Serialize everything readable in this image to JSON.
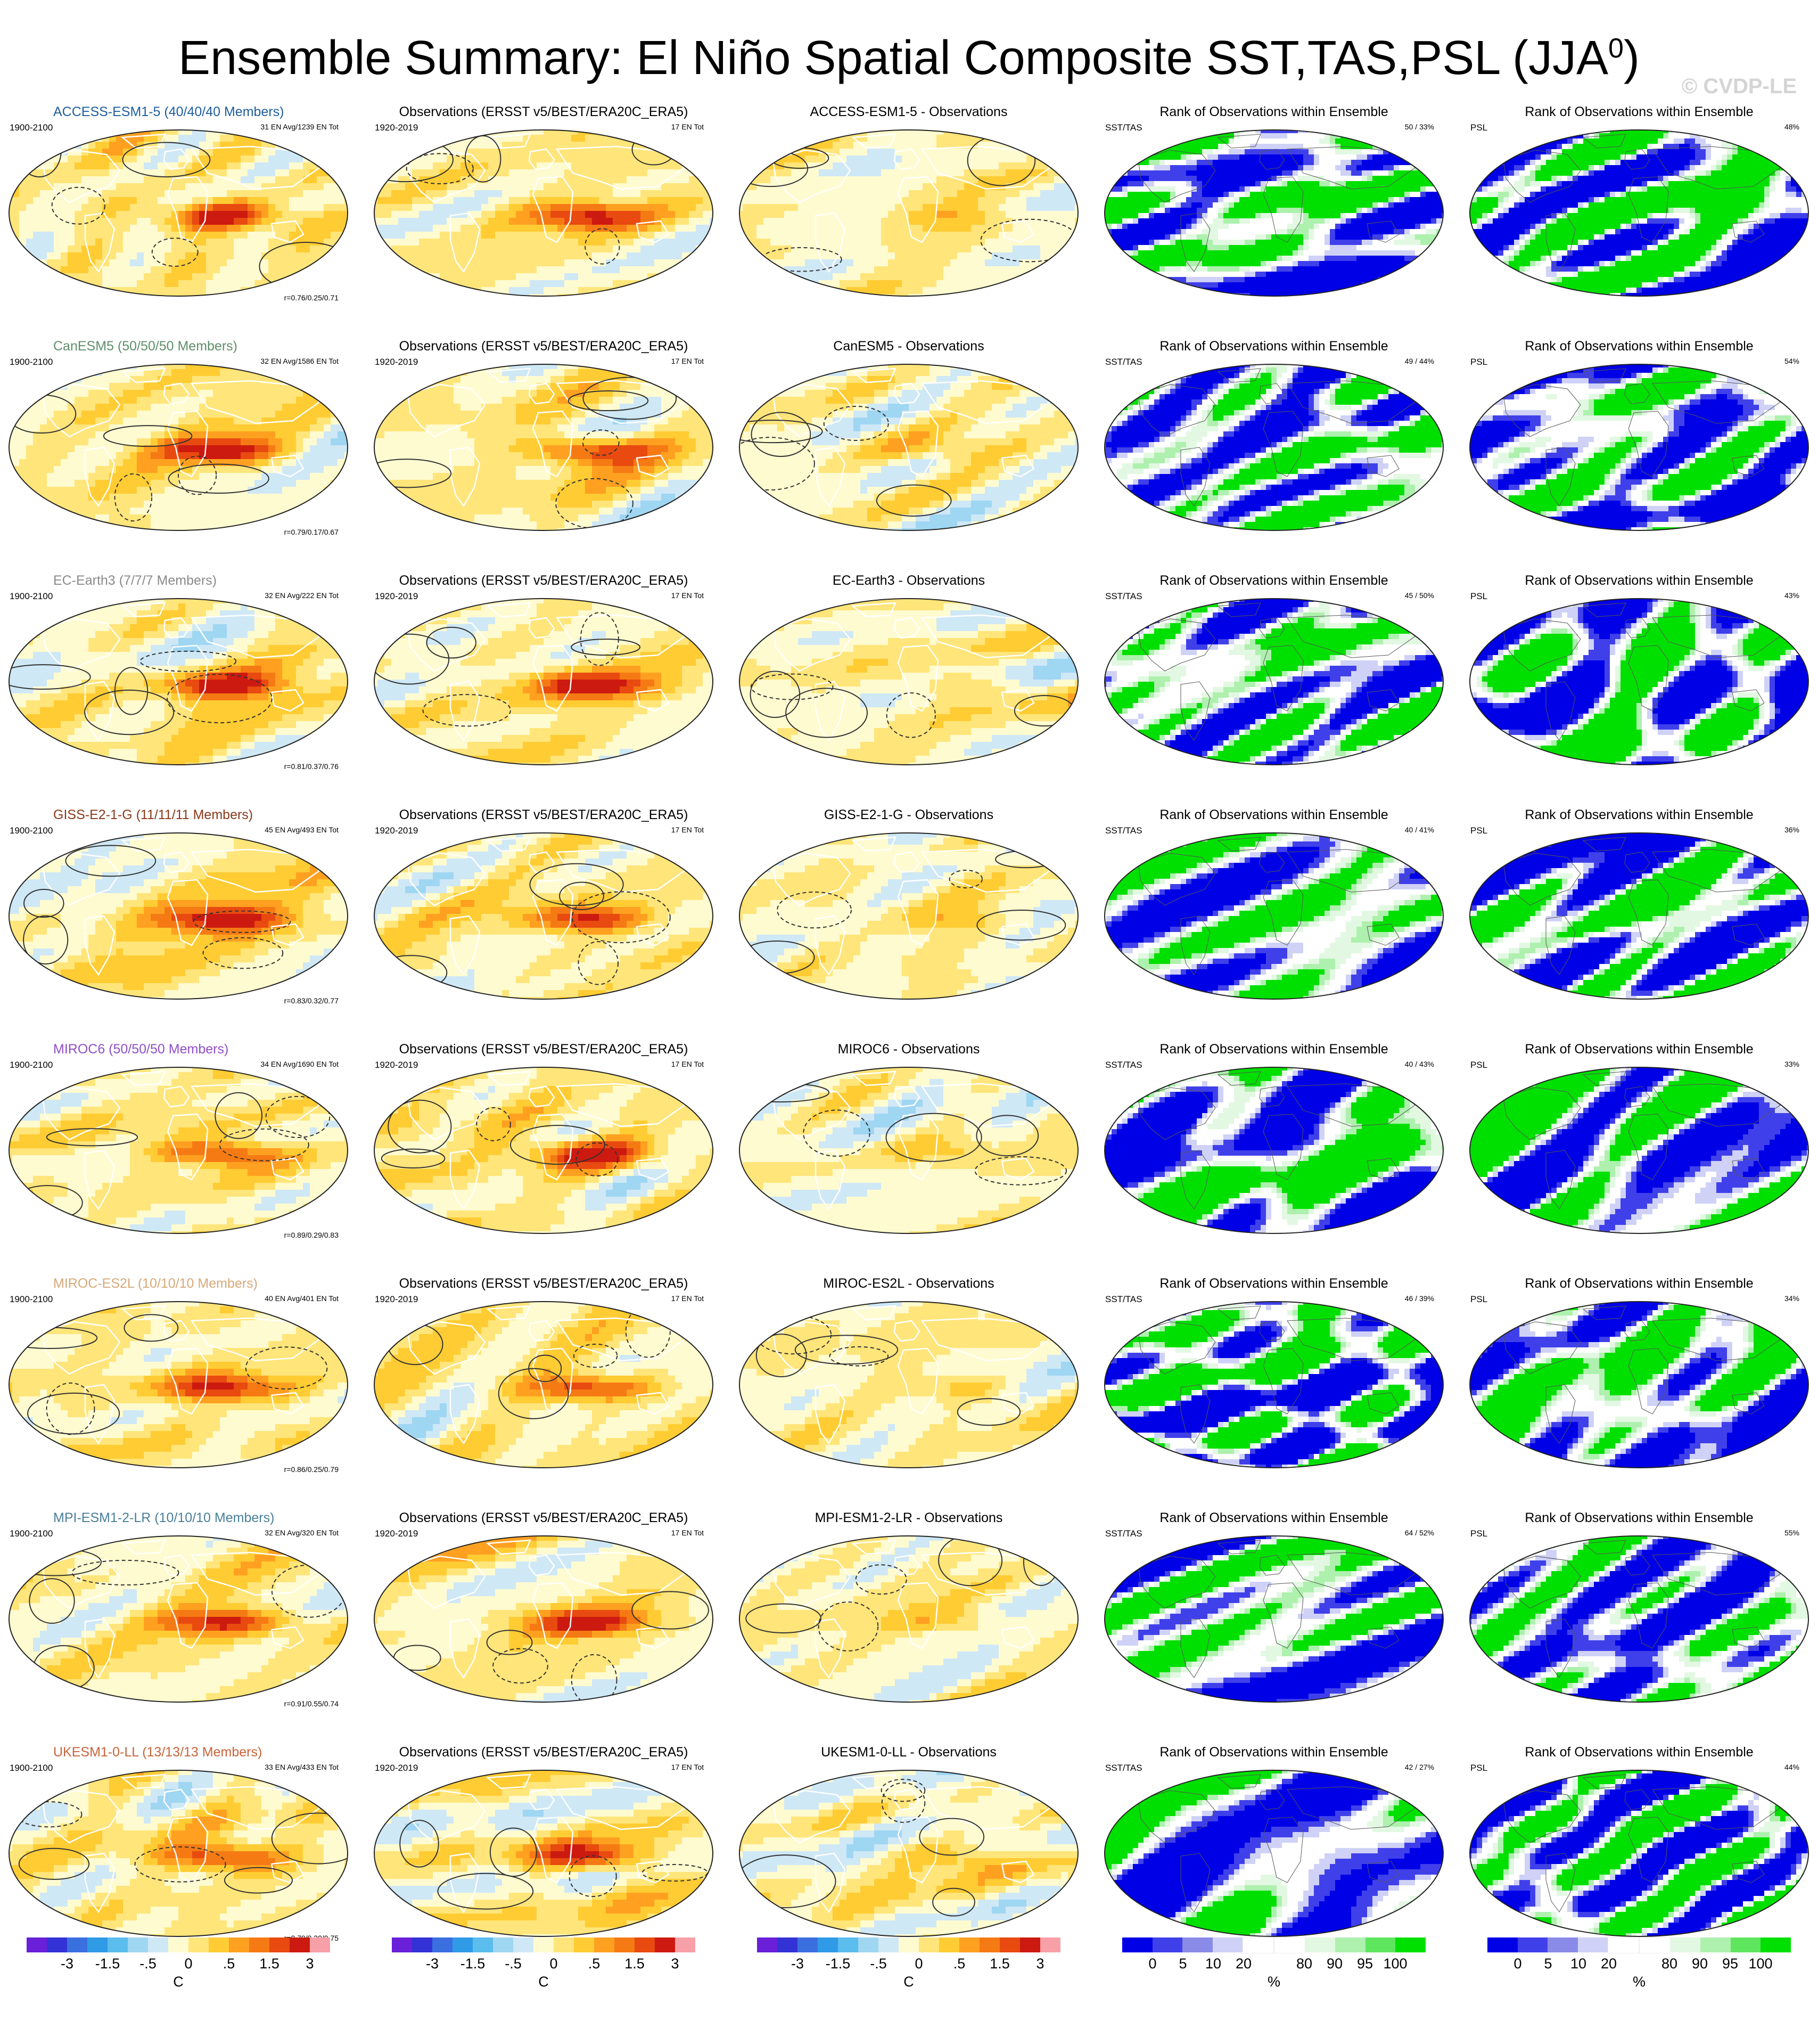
{
  "title_main": "Ensemble Summary: El Niño Spatial Composite SST,TAS,PSL (JJA",
  "title_sup": "0",
  "title_end": ")",
  "watermark": "© CVDP-LE",
  "columns": {
    "obs_title": "Observations (ERSST v5/BEST/ERA20C_ERA5)",
    "obs_period": "1920-2019",
    "obs_count": "17 EN Tot",
    "model_period": "1900-2100",
    "rank_title": "Rank of Observations within Ensemble",
    "rank_sst_label": "SST/TAS",
    "rank_psl_label": "PSL"
  },
  "rows": [
    {
      "model": "ACCESS-ESM1-5 (40/40/40 Members)",
      "model_color": "#1f5e9e",
      "en": "31 EN Avg/1239 EN Tot",
      "r": "r=0.76/0.25/0.71",
      "diff": "ACCESS-ESM1-5 - Observations",
      "sst_rank": "50 /  33%",
      "psl_rank": "48%"
    },
    {
      "model": "CanESM5 (50/50/50 Members)",
      "model_color": "#5f8e6a",
      "en": "32 EN Avg/1586 EN Tot",
      "r": "r=0.79/0.17/0.67",
      "diff": "CanESM5 - Observations",
      "sst_rank": "49 /  44%",
      "psl_rank": "54%"
    },
    {
      "model": "EC-Earth3 (7/7/7 Members)",
      "model_color": "#8a8a8a",
      "en": "32 EN Avg/222 EN Tot",
      "r": "r=0.81/0.37/0.76",
      "diff": "EC-Earth3 - Observations",
      "sst_rank": "45 /  50%",
      "psl_rank": "43%"
    },
    {
      "model": "GISS-E2-1-G (11/11/11 Members)",
      "model_color": "#8a3a1a",
      "en": "45 EN Avg/493 EN Tot",
      "r": "r=0.83/0.32/0.77",
      "diff": "GISS-E2-1-G - Observations",
      "sst_rank": "40 /  41%",
      "psl_rank": "36%"
    },
    {
      "model": "MIROC6 (50/50/50 Members)",
      "model_color": "#8f4fc8",
      "en": "34 EN Avg/1690 EN Tot",
      "r": "r=0.89/0.29/0.83",
      "diff": "MIROC6 - Observations",
      "sst_rank": "40 /  43%",
      "psl_rank": "33%"
    },
    {
      "model": "MIROC-ES2L (10/10/10 Members)",
      "model_color": "#d6a978",
      "en": "40 EN Avg/401 EN Tot",
      "r": "r=0.86/0.25/0.79",
      "diff": "MIROC-ES2L - Observations",
      "sst_rank": "46 /  39%",
      "psl_rank": "34%"
    },
    {
      "model": "MPI-ESM1-2-LR (10/10/10 Members)",
      "model_color": "#4a7f9a",
      "en": "32 EN Avg/320 EN Tot",
      "r": "r=0.91/0.55/0.74",
      "diff": "MPI-ESM1-2-LR - Observations",
      "sst_rank": "64 /  52%",
      "psl_rank": "55%"
    },
    {
      "model": "UKESM1-0-LL (13/13/13 Members)",
      "model_color": "#c8643a",
      "en": "33 EN Avg/433 EN Tot",
      "r": "r=0.79/0.20/0.75",
      "diff": "UKESM1-0-LL - Observations",
      "sst_rank": "42 /  27%",
      "psl_rank": "44%"
    }
  ],
  "chart_data": {
    "type": "heatmap",
    "temp_colorbar": {
      "colors": [
        "#6a1fd8",
        "#3232d6",
        "#3a6fe0",
        "#2f9ae6",
        "#5bbcee",
        "#9fd6f2",
        "#cfe8f6",
        "#fffbd0",
        "#ffe57a",
        "#ffcc33",
        "#ffa020",
        "#f57a14",
        "#e84a10",
        "#cc1a10",
        "#f7a0a8"
      ],
      "labels": [
        "-3",
        "-1.5",
        "-.5",
        "0",
        ".5",
        "1.5",
        "3"
      ],
      "label_box_index": [
        2,
        4,
        6,
        8,
        10,
        12,
        14
      ],
      "unit": "C"
    },
    "rank_colorbar": {
      "colors": [
        "#0000e6",
        "#4040ea",
        "#8a8ae8",
        "#cfd2f6",
        "#ffffff",
        "#ffffff",
        "#e2f8e2",
        "#aef0ae",
        "#5fe65f",
        "#00e000"
      ],
      "labels": [
        "0",
        "5",
        "10",
        "20",
        "80",
        "90",
        "95",
        "100"
      ],
      "label_box_index": [
        1,
        2,
        3,
        4,
        6,
        7,
        8,
        9
      ],
      "unit": "%"
    }
  }
}
